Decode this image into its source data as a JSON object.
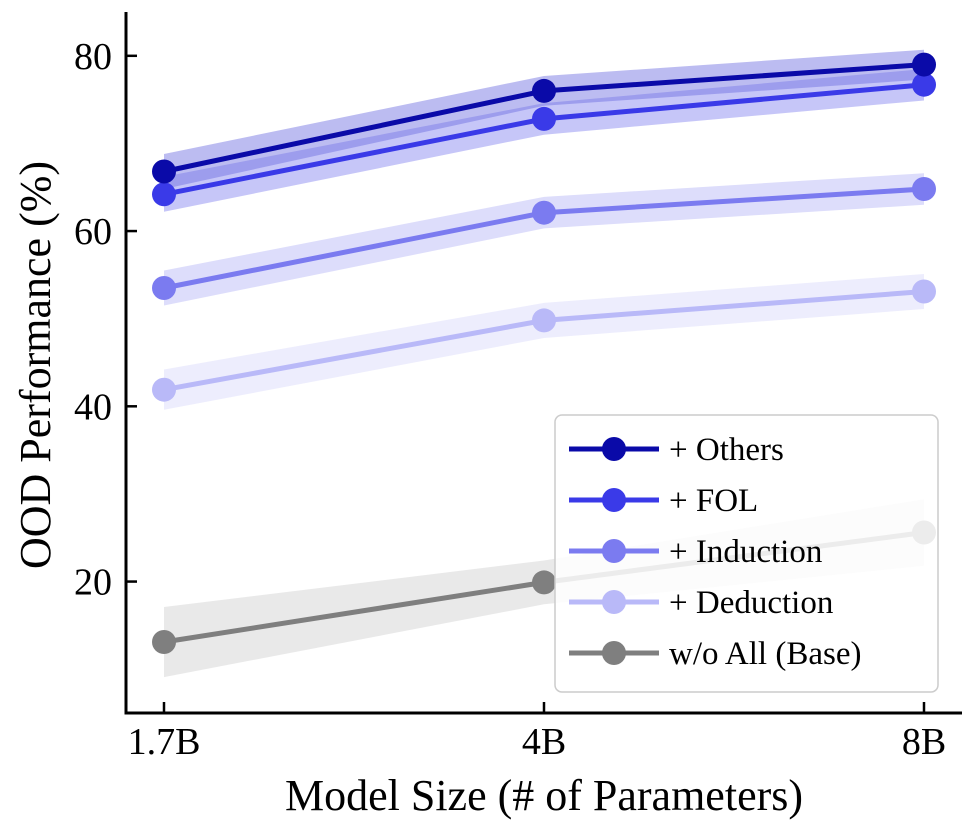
{
  "chart_data": {
    "type": "line",
    "title": "",
    "xlabel": "Model Size (# of Parameters)",
    "ylabel": "OOD Performance (%)",
    "categories": [
      "1.7B",
      "4B",
      "8B"
    ],
    "ylim": [
      5,
      85
    ],
    "yticks": [
      20,
      40,
      60,
      80
    ],
    "grid": false,
    "legend_position": "lower-right",
    "series": [
      {
        "name": "+ Others",
        "color": "#0a0aa8",
        "band_color": "#6a6ae0",
        "values": [
          66.8,
          76.0,
          79.0
        ],
        "band": [
          [
            64.8,
            68.8
          ],
          [
            74.3,
            77.7
          ],
          [
            77.3,
            80.7
          ]
        ]
      },
      {
        "name": "+ FOL",
        "color": "#3a3ae8",
        "band_color": "#8080f0",
        "values": [
          64.2,
          72.8,
          76.7
        ],
        "band": [
          [
            62.2,
            66.2
          ],
          [
            71.0,
            74.6
          ],
          [
            74.9,
            78.5
          ]
        ]
      },
      {
        "name": "+ Induction",
        "color": "#7b7bf0",
        "band_color": "#b4b4f6",
        "values": [
          53.5,
          62.1,
          64.8
        ],
        "band": [
          [
            51.5,
            55.5
          ],
          [
            60.3,
            63.9
          ],
          [
            63.0,
            66.6
          ]
        ]
      },
      {
        "name": "+ Deduction",
        "color": "#b9b9f8",
        "band_color": "#d8d8fb",
        "values": [
          41.9,
          49.8,
          53.1
        ],
        "band": [
          [
            39.6,
            44.2
          ],
          [
            47.8,
            51.8
          ],
          [
            51.1,
            55.1
          ]
        ]
      },
      {
        "name": "w/o All (Base)",
        "color": "#7f7f7f",
        "band_color": "#cfcfcf",
        "values": [
          13.1,
          19.9,
          25.6
        ],
        "band": [
          [
            9.1,
            17.1
          ],
          [
            17.4,
            22.4
          ],
          [
            21.8,
            29.4
          ]
        ]
      }
    ]
  }
}
